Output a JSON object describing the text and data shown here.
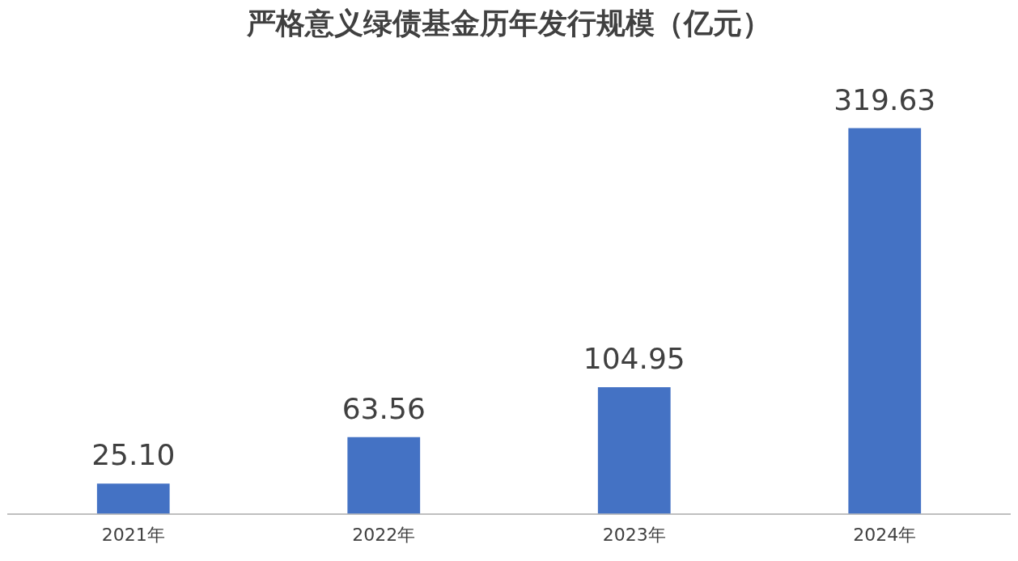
{
  "chart_data": {
    "type": "bar",
    "title": "严格意义绿债基金历年发行规模（亿元）",
    "categories": [
      "2021年",
      "2022年",
      "2023年",
      "2024年"
    ],
    "values": [
      25.1,
      63.56,
      104.95,
      319.63
    ],
    "value_labels": [
      "25.10",
      "63.56",
      "104.95",
      "319.63"
    ],
    "color": "#4472c4",
    "grid": false,
    "legend": false
  }
}
